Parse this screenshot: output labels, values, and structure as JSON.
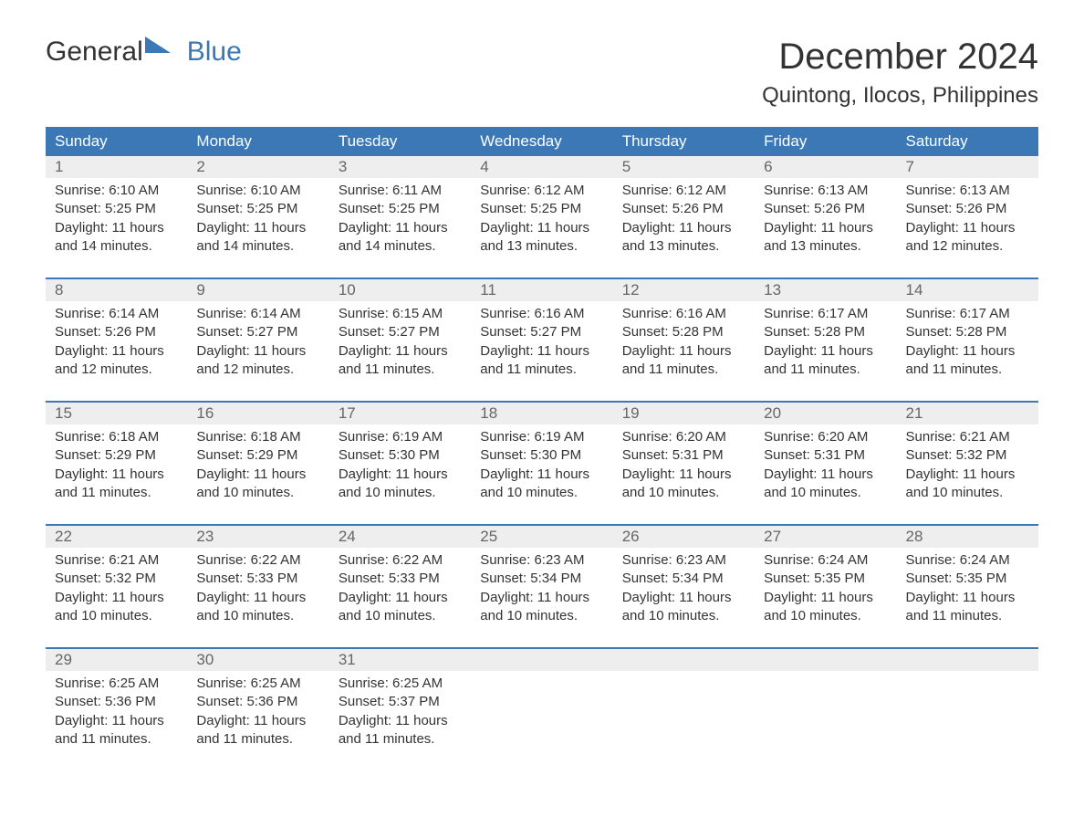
{
  "logo": {
    "word1": "General",
    "word2": "Blue"
  },
  "title": "December 2024",
  "location": "Quintong, Ilocos, Philippines",
  "colors": {
    "header_bg": "#3b78b5",
    "header_text": "#ffffff",
    "daynum_bg": "#eeeeee",
    "daynum_text": "#666666",
    "body_text": "#333333",
    "rule": "#3b78b5"
  },
  "day_headers": [
    "Sunday",
    "Monday",
    "Tuesday",
    "Wednesday",
    "Thursday",
    "Friday",
    "Saturday"
  ],
  "weeks": [
    [
      {
        "n": "1",
        "sunrise": "Sunrise: 6:10 AM",
        "sunset": "Sunset: 5:25 PM",
        "day1": "Daylight: 11 hours",
        "day2": "and 14 minutes."
      },
      {
        "n": "2",
        "sunrise": "Sunrise: 6:10 AM",
        "sunset": "Sunset: 5:25 PM",
        "day1": "Daylight: 11 hours",
        "day2": "and 14 minutes."
      },
      {
        "n": "3",
        "sunrise": "Sunrise: 6:11 AM",
        "sunset": "Sunset: 5:25 PM",
        "day1": "Daylight: 11 hours",
        "day2": "and 14 minutes."
      },
      {
        "n": "4",
        "sunrise": "Sunrise: 6:12 AM",
        "sunset": "Sunset: 5:25 PM",
        "day1": "Daylight: 11 hours",
        "day2": "and 13 minutes."
      },
      {
        "n": "5",
        "sunrise": "Sunrise: 6:12 AM",
        "sunset": "Sunset: 5:26 PM",
        "day1": "Daylight: 11 hours",
        "day2": "and 13 minutes."
      },
      {
        "n": "6",
        "sunrise": "Sunrise: 6:13 AM",
        "sunset": "Sunset: 5:26 PM",
        "day1": "Daylight: 11 hours",
        "day2": "and 13 minutes."
      },
      {
        "n": "7",
        "sunrise": "Sunrise: 6:13 AM",
        "sunset": "Sunset: 5:26 PM",
        "day1": "Daylight: 11 hours",
        "day2": "and 12 minutes."
      }
    ],
    [
      {
        "n": "8",
        "sunrise": "Sunrise: 6:14 AM",
        "sunset": "Sunset: 5:26 PM",
        "day1": "Daylight: 11 hours",
        "day2": "and 12 minutes."
      },
      {
        "n": "9",
        "sunrise": "Sunrise: 6:14 AM",
        "sunset": "Sunset: 5:27 PM",
        "day1": "Daylight: 11 hours",
        "day2": "and 12 minutes."
      },
      {
        "n": "10",
        "sunrise": "Sunrise: 6:15 AM",
        "sunset": "Sunset: 5:27 PM",
        "day1": "Daylight: 11 hours",
        "day2": "and 11 minutes."
      },
      {
        "n": "11",
        "sunrise": "Sunrise: 6:16 AM",
        "sunset": "Sunset: 5:27 PM",
        "day1": "Daylight: 11 hours",
        "day2": "and 11 minutes."
      },
      {
        "n": "12",
        "sunrise": "Sunrise: 6:16 AM",
        "sunset": "Sunset: 5:28 PM",
        "day1": "Daylight: 11 hours",
        "day2": "and 11 minutes."
      },
      {
        "n": "13",
        "sunrise": "Sunrise: 6:17 AM",
        "sunset": "Sunset: 5:28 PM",
        "day1": "Daylight: 11 hours",
        "day2": "and 11 minutes."
      },
      {
        "n": "14",
        "sunrise": "Sunrise: 6:17 AM",
        "sunset": "Sunset: 5:28 PM",
        "day1": "Daylight: 11 hours",
        "day2": "and 11 minutes."
      }
    ],
    [
      {
        "n": "15",
        "sunrise": "Sunrise: 6:18 AM",
        "sunset": "Sunset: 5:29 PM",
        "day1": "Daylight: 11 hours",
        "day2": "and 11 minutes."
      },
      {
        "n": "16",
        "sunrise": "Sunrise: 6:18 AM",
        "sunset": "Sunset: 5:29 PM",
        "day1": "Daylight: 11 hours",
        "day2": "and 10 minutes."
      },
      {
        "n": "17",
        "sunrise": "Sunrise: 6:19 AM",
        "sunset": "Sunset: 5:30 PM",
        "day1": "Daylight: 11 hours",
        "day2": "and 10 minutes."
      },
      {
        "n": "18",
        "sunrise": "Sunrise: 6:19 AM",
        "sunset": "Sunset: 5:30 PM",
        "day1": "Daylight: 11 hours",
        "day2": "and 10 minutes."
      },
      {
        "n": "19",
        "sunrise": "Sunrise: 6:20 AM",
        "sunset": "Sunset: 5:31 PM",
        "day1": "Daylight: 11 hours",
        "day2": "and 10 minutes."
      },
      {
        "n": "20",
        "sunrise": "Sunrise: 6:20 AM",
        "sunset": "Sunset: 5:31 PM",
        "day1": "Daylight: 11 hours",
        "day2": "and 10 minutes."
      },
      {
        "n": "21",
        "sunrise": "Sunrise: 6:21 AM",
        "sunset": "Sunset: 5:32 PM",
        "day1": "Daylight: 11 hours",
        "day2": "and 10 minutes."
      }
    ],
    [
      {
        "n": "22",
        "sunrise": "Sunrise: 6:21 AM",
        "sunset": "Sunset: 5:32 PM",
        "day1": "Daylight: 11 hours",
        "day2": "and 10 minutes."
      },
      {
        "n": "23",
        "sunrise": "Sunrise: 6:22 AM",
        "sunset": "Sunset: 5:33 PM",
        "day1": "Daylight: 11 hours",
        "day2": "and 10 minutes."
      },
      {
        "n": "24",
        "sunrise": "Sunrise: 6:22 AM",
        "sunset": "Sunset: 5:33 PM",
        "day1": "Daylight: 11 hours",
        "day2": "and 10 minutes."
      },
      {
        "n": "25",
        "sunrise": "Sunrise: 6:23 AM",
        "sunset": "Sunset: 5:34 PM",
        "day1": "Daylight: 11 hours",
        "day2": "and 10 minutes."
      },
      {
        "n": "26",
        "sunrise": "Sunrise: 6:23 AM",
        "sunset": "Sunset: 5:34 PM",
        "day1": "Daylight: 11 hours",
        "day2": "and 10 minutes."
      },
      {
        "n": "27",
        "sunrise": "Sunrise: 6:24 AM",
        "sunset": "Sunset: 5:35 PM",
        "day1": "Daylight: 11 hours",
        "day2": "and 10 minutes."
      },
      {
        "n": "28",
        "sunrise": "Sunrise: 6:24 AM",
        "sunset": "Sunset: 5:35 PM",
        "day1": "Daylight: 11 hours",
        "day2": "and 11 minutes."
      }
    ],
    [
      {
        "n": "29",
        "sunrise": "Sunrise: 6:25 AM",
        "sunset": "Sunset: 5:36 PM",
        "day1": "Daylight: 11 hours",
        "day2": "and 11 minutes."
      },
      {
        "n": "30",
        "sunrise": "Sunrise: 6:25 AM",
        "sunset": "Sunset: 5:36 PM",
        "day1": "Daylight: 11 hours",
        "day2": "and 11 minutes."
      },
      {
        "n": "31",
        "sunrise": "Sunrise: 6:25 AM",
        "sunset": "Sunset: 5:37 PM",
        "day1": "Daylight: 11 hours",
        "day2": "and 11 minutes."
      },
      null,
      null,
      null,
      null
    ]
  ]
}
